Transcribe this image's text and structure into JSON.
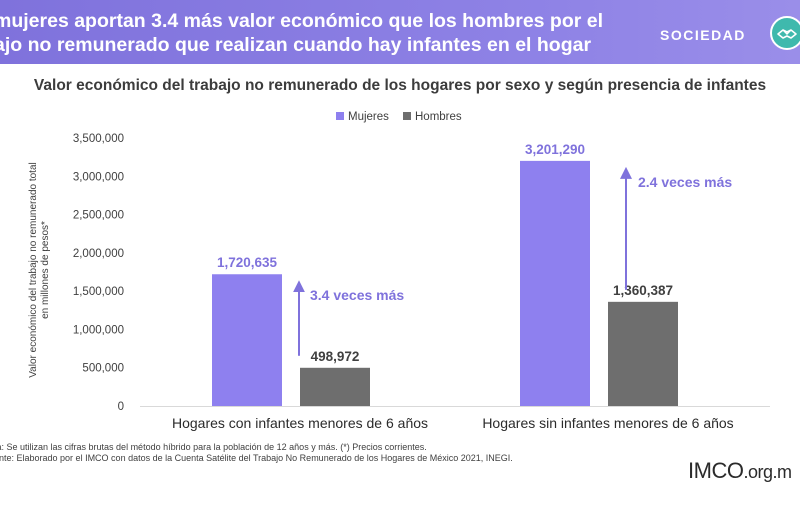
{
  "banner": {
    "title_line1": "mujeres aportan 3.4 más valor económico que los hombres por el",
    "title_line2": "ajo no remunerado que realizan cuando hay infantes en el hogar",
    "section": "SOCIEDAD",
    "section_icon": "handshake-icon"
  },
  "colors": {
    "banner": "#8b7fe0",
    "mujeres": "#8e80ef",
    "hombres": "#6e6e6e",
    "annotation": "#7f72dc",
    "axis_text": "#404040"
  },
  "chart_data": {
    "type": "bar",
    "title": "Valor económico del trabajo no remunerado de los hogares por sexo y según presencia de infantes",
    "ylabel_line1": "Valor económico del trabajo no remunerado total",
    "ylabel_line2": "en millones de pesos*",
    "xlabel": "",
    "ylim": [
      0,
      3500000
    ],
    "yticks": [
      "0",
      "500,000",
      "1,000,000",
      "1,500,000",
      "2,000,000",
      "2,500,000",
      "3,000,000",
      "3,500,000"
    ],
    "legend_placement": "top-center",
    "grid": false,
    "categories": [
      "Hogares con infantes menores de 6 años",
      "Hogares sin infantes menores de 6 años"
    ],
    "series": [
      {
        "name": "Mujeres",
        "values": [
          1720635,
          3201290
        ],
        "labels": [
          "1,720,635",
          "3,201,290"
        ]
      },
      {
        "name": "Hombres",
        "values": [
          498972,
          1360387
        ],
        "labels": [
          "498,972",
          "1,360,387"
        ]
      }
    ],
    "annotations": [
      {
        "text": "3.4 veces más",
        "category": 0,
        "from": 498972,
        "to": 1720635
      },
      {
        "text": "2.4 veces más",
        "category": 1,
        "from": 1360387,
        "to": 3201290
      }
    ]
  },
  "footer": {
    "note": "ta: Se utilizan las cifras brutas del método híbrido para la población de 12 años y más. (*) Precios corrientes.",
    "source": "ente: Elaborado por el IMCO con datos de la Cuenta Satélite del Trabajo No Remunerado de los Hogares de México 2021, INEGI.",
    "logo_name": "IMCO",
    "logo_domain": ".org.m"
  }
}
